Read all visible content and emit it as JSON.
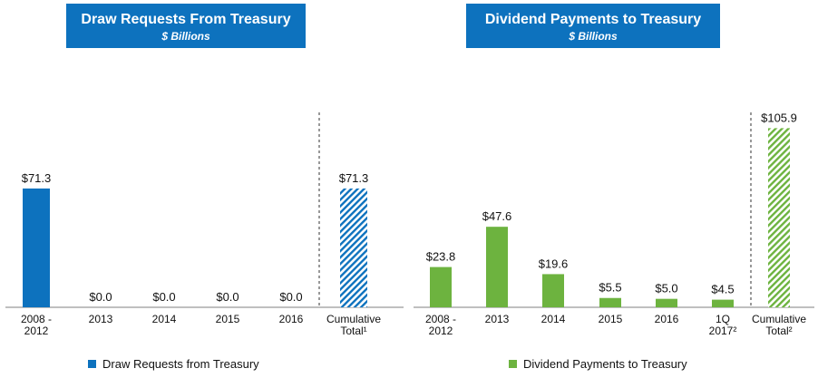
{
  "chart_data": [
    {
      "type": "bar",
      "title": "Draw Requests From Treasury",
      "subtitle": "$ Billions",
      "categories": [
        "2008 - 2012",
        "2013",
        "2014",
        "2015",
        "2016",
        "Cumulative Total¹"
      ],
      "series": [
        {
          "name": "Draw Requests from Treasury",
          "values": [
            71.3,
            0.0,
            0.0,
            0.0,
            0.0,
            71.3
          ]
        }
      ],
      "data_labels": [
        "$71.3",
        "$0.0",
        "$0.0",
        "$0.0",
        "$0.0",
        "$71.3"
      ],
      "cumulative_hatched": true,
      "color": "#0d72be",
      "ylim": [
        0,
        125
      ],
      "legend": "bottom"
    },
    {
      "type": "bar",
      "title": "Dividend Payments to Treasury",
      "subtitle": "$ Billions",
      "categories": [
        "2008 - 2012",
        "2013",
        "2014",
        "2015",
        "2016",
        "1Q 2017²",
        "Cumulative Total²"
      ],
      "series": [
        {
          "name": "Dividend Payments to Treasury",
          "values": [
            23.8,
            47.6,
            19.6,
            5.5,
            5.0,
            4.5,
            105.9
          ]
        }
      ],
      "data_labels": [
        "$23.8",
        "$47.6",
        "$19.6",
        "$5.5",
        "$5.0",
        "$4.5",
        "$105.9"
      ],
      "cumulative_hatched": true,
      "color": "#6db33f",
      "ylim": [
        0,
        125
      ],
      "legend": "bottom"
    }
  ]
}
